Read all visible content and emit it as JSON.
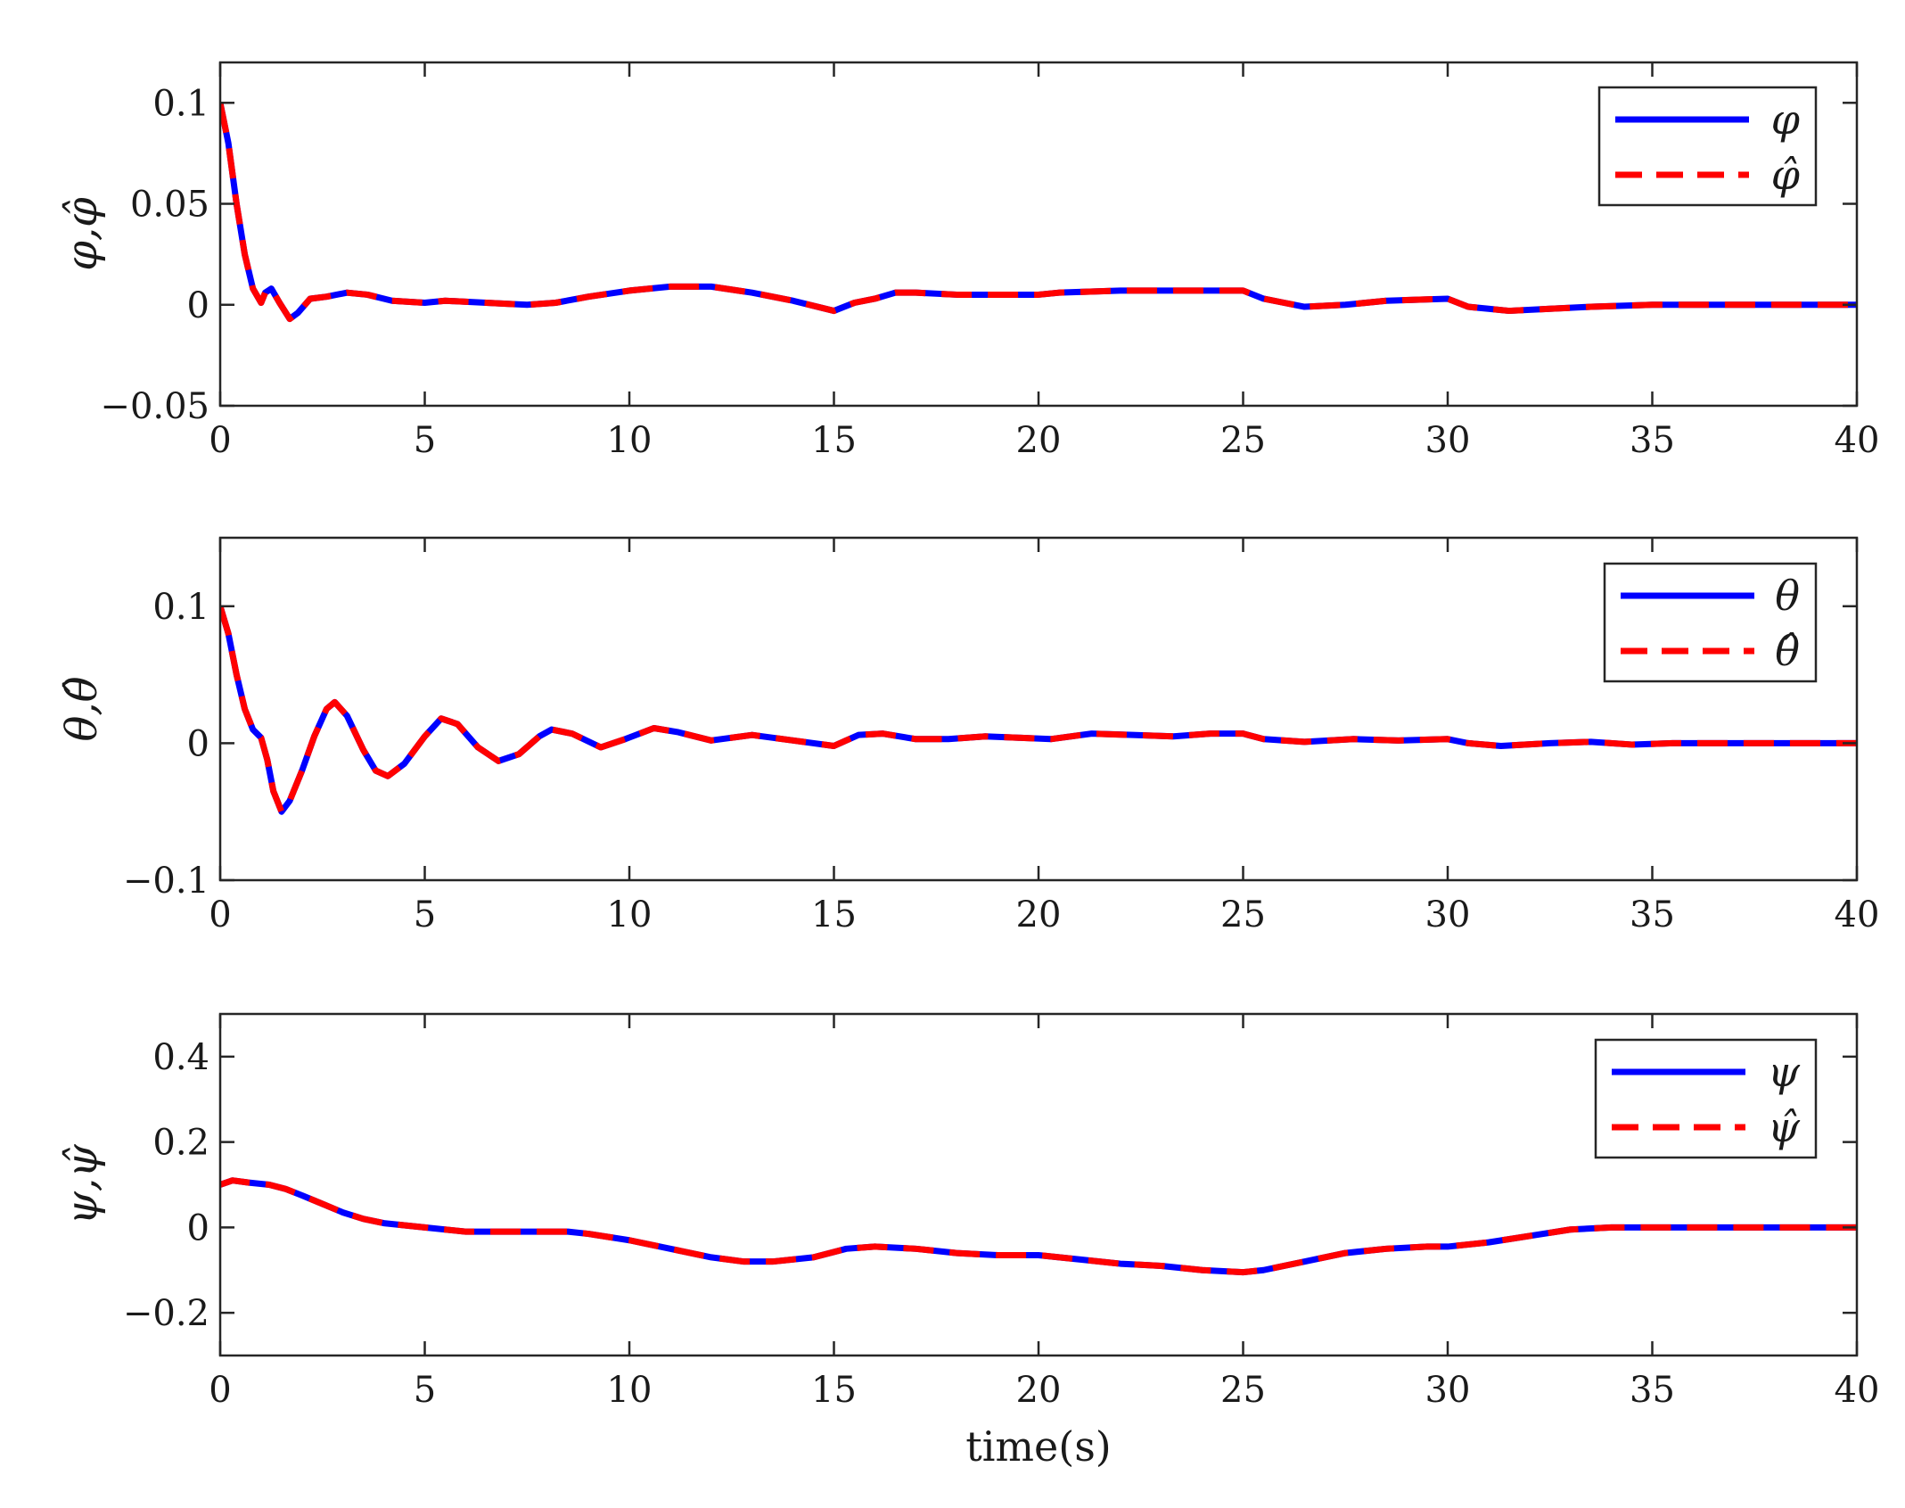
{
  "chart_data": [
    {
      "type": "line",
      "ylabel": "φ,φ̂",
      "xlim": [
        0,
        40
      ],
      "ylim": [
        -0.05,
        0.12
      ],
      "xticks": [
        "0",
        "5",
        "10",
        "15",
        "20",
        "25",
        "30",
        "35",
        "40"
      ],
      "yticks": [
        {
          "value": -0.05,
          "label": "−0.05"
        },
        {
          "value": 0,
          "label": "0"
        },
        {
          "value": 0.05,
          "label": "0.05"
        },
        {
          "value": 0.1,
          "label": "0.1"
        }
      ],
      "legend_position": "top-right",
      "grid": false,
      "series": [
        {
          "name": "φ",
          "color": "#0000ff",
          "style": "solid",
          "x": [
            0,
            0.2,
            0.4,
            0.6,
            0.8,
            1.0,
            1.1,
            1.25,
            1.45,
            1.7,
            1.9,
            2.2,
            2.6,
            3.1,
            3.6,
            4.2,
            5.0,
            5.5,
            6.5,
            7.5,
            8.2,
            9.0,
            10.0,
            11.0,
            12.0,
            13.0,
            14.0,
            15.0,
            15.5,
            16.0,
            16.5,
            17.0,
            18.0,
            19.0,
            20.0,
            20.5,
            22.0,
            23.0,
            25.0,
            25.5,
            26.0,
            26.5,
            27.5,
            28.5,
            30.0,
            30.5,
            31.0,
            31.5,
            32.5,
            33.5,
            35.0,
            40.0
          ],
          "y": [
            0.1,
            0.08,
            0.05,
            0.025,
            0.008,
            0.001,
            0.006,
            0.008,
            0.001,
            -0.007,
            -0.004,
            0.003,
            0.004,
            0.006,
            0.005,
            0.002,
            0.001,
            0.002,
            0.001,
            0,
            0.001,
            0.004,
            0.007,
            0.009,
            0.009,
            0.006,
            0.002,
            -0.003,
            0.001,
            0.003,
            0.006,
            0.006,
            0.005,
            0.005,
            0.005,
            0.006,
            0.007,
            0.007,
            0.007,
            0.003,
            0.001,
            -0.001,
            0,
            0.002,
            0.003,
            -0.001,
            -0.002,
            -0.003,
            -0.002,
            -0.001,
            0,
            0
          ]
        },
        {
          "name": "φ̂",
          "color": "#ff0000",
          "style": "dashed",
          "x": [
            0,
            0.2,
            0.4,
            0.6,
            0.8,
            1.0,
            1.1,
            1.25,
            1.45,
            1.7,
            1.9,
            2.2,
            2.6,
            3.1,
            3.6,
            4.2,
            5.0,
            5.5,
            6.5,
            7.5,
            8.2,
            9.0,
            10.0,
            11.0,
            12.0,
            13.0,
            14.0,
            15.0,
            15.5,
            16.0,
            16.5,
            17.0,
            18.0,
            19.0,
            20.0,
            20.5,
            22.0,
            23.0,
            25.0,
            25.5,
            26.0,
            26.5,
            27.5,
            28.5,
            30.0,
            30.5,
            31.0,
            31.5,
            32.5,
            33.5,
            35.0,
            40.0
          ],
          "y": [
            0.1,
            0.08,
            0.05,
            0.025,
            0.008,
            0.001,
            0.006,
            0.008,
            0.001,
            -0.007,
            -0.004,
            0.003,
            0.004,
            0.006,
            0.005,
            0.002,
            0.001,
            0.002,
            0.001,
            0,
            0.001,
            0.004,
            0.007,
            0.009,
            0.009,
            0.006,
            0.002,
            -0.003,
            0.001,
            0.003,
            0.006,
            0.006,
            0.005,
            0.005,
            0.005,
            0.006,
            0.007,
            0.007,
            0.007,
            0.003,
            0.001,
            -0.001,
            0,
            0.002,
            0.003,
            -0.001,
            -0.002,
            -0.003,
            -0.002,
            -0.001,
            0,
            0
          ]
        }
      ]
    },
    {
      "type": "line",
      "ylabel": "θ,θ̂",
      "xlim": [
        0,
        40
      ],
      "ylim": [
        -0.1,
        0.15
      ],
      "xticks": [
        "0",
        "5",
        "10",
        "15",
        "20",
        "25",
        "30",
        "35",
        "40"
      ],
      "yticks": [
        {
          "value": -0.1,
          "label": "−0.1"
        },
        {
          "value": 0,
          "label": "0"
        },
        {
          "value": 0.1,
          "label": "0.1"
        }
      ],
      "legend_position": "top-right",
      "grid": false,
      "series": [
        {
          "name": "θ",
          "color": "#0000ff",
          "style": "solid",
          "x": [
            0,
            0.2,
            0.4,
            0.6,
            0.8,
            1.0,
            1.15,
            1.3,
            1.5,
            1.7,
            2.0,
            2.3,
            2.6,
            2.8,
            3.1,
            3.5,
            3.8,
            4.1,
            4.5,
            5.0,
            5.4,
            5.8,
            6.3,
            6.8,
            7.3,
            7.8,
            8.1,
            8.6,
            9.3,
            9.9,
            10.6,
            11.2,
            12.0,
            13.0,
            14.0,
            15.0,
            15.6,
            16.2,
            17.0,
            17.8,
            18.7,
            19.5,
            20.3,
            21.3,
            22.3,
            23.3,
            24.2,
            25.0,
            25.5,
            26.5,
            27.7,
            28.8,
            30.0,
            30.5,
            31.3,
            32.5,
            33.5,
            34.5,
            35.5,
            37.0,
            40.0
          ],
          "y": [
            0.1,
            0.08,
            0.05,
            0.025,
            0.01,
            0.004,
            -0.012,
            -0.035,
            -0.05,
            -0.042,
            -0.02,
            0.005,
            0.025,
            0.03,
            0.02,
            -0.005,
            -0.02,
            -0.024,
            -0.015,
            0.005,
            0.018,
            0.014,
            -0.003,
            -0.013,
            -0.008,
            0.005,
            0.01,
            0.007,
            -0.003,
            0.003,
            0.011,
            0.008,
            0.002,
            0.006,
            0.002,
            -0.002,
            0.006,
            0.007,
            0.003,
            0.003,
            0.005,
            0.004,
            0.003,
            0.007,
            0.006,
            0.005,
            0.007,
            0.007,
            0.003,
            0.001,
            0.003,
            0.002,
            0.003,
            0,
            -0.002,
            0,
            0.001,
            -0.001,
            0,
            0,
            0
          ]
        },
        {
          "name": "θ̂",
          "color": "#ff0000",
          "style": "dashed",
          "x": [
            0,
            0.2,
            0.4,
            0.6,
            0.8,
            1.0,
            1.15,
            1.3,
            1.5,
            1.7,
            2.0,
            2.3,
            2.6,
            2.8,
            3.1,
            3.5,
            3.8,
            4.1,
            4.5,
            5.0,
            5.4,
            5.8,
            6.3,
            6.8,
            7.3,
            7.8,
            8.1,
            8.6,
            9.3,
            9.9,
            10.6,
            11.2,
            12.0,
            13.0,
            14.0,
            15.0,
            15.6,
            16.2,
            17.0,
            17.8,
            18.7,
            19.5,
            20.3,
            21.3,
            22.3,
            23.3,
            24.2,
            25.0,
            25.5,
            26.5,
            27.7,
            28.8,
            30.0,
            30.5,
            31.3,
            32.5,
            33.5,
            34.5,
            35.5,
            37.0,
            40.0
          ],
          "y": [
            0.1,
            0.08,
            0.05,
            0.025,
            0.01,
            0.004,
            -0.012,
            -0.035,
            -0.05,
            -0.042,
            -0.02,
            0.005,
            0.025,
            0.03,
            0.02,
            -0.005,
            -0.02,
            -0.024,
            -0.015,
            0.005,
            0.018,
            0.014,
            -0.003,
            -0.013,
            -0.008,
            0.005,
            0.01,
            0.007,
            -0.003,
            0.003,
            0.011,
            0.008,
            0.002,
            0.006,
            0.002,
            -0.002,
            0.006,
            0.007,
            0.003,
            0.003,
            0.005,
            0.004,
            0.003,
            0.007,
            0.006,
            0.005,
            0.007,
            0.007,
            0.003,
            0.001,
            0.003,
            0.002,
            0.003,
            0,
            -0.002,
            0,
            0.001,
            -0.001,
            0,
            0,
            0
          ]
        }
      ]
    },
    {
      "type": "line",
      "ylabel": "ψ,ψ̂",
      "xlabel": "time(s)",
      "xlim": [
        0,
        40
      ],
      "ylim": [
        -0.3,
        0.5
      ],
      "xticks": [
        "0",
        "5",
        "10",
        "15",
        "20",
        "25",
        "30",
        "35",
        "40"
      ],
      "yticks": [
        {
          "value": -0.2,
          "label": "−0.2"
        },
        {
          "value": 0,
          "label": "0"
        },
        {
          "value": 0.2,
          "label": "0.2"
        },
        {
          "value": 0.4,
          "label": "0.4"
        }
      ],
      "legend_position": "top-right",
      "grid": false,
      "series": [
        {
          "name": "ψ",
          "color": "#0000ff",
          "style": "solid",
          "x": [
            0,
            0.3,
            0.7,
            1.2,
            1.6,
            2.0,
            2.5,
            3.0,
            3.5,
            4.0,
            4.5,
            5.0,
            6.0,
            7.0,
            8.0,
            8.5,
            9.0,
            10.0,
            11.0,
            12.0,
            12.8,
            13.5,
            14.5,
            15.3,
            16.0,
            17.0,
            18.0,
            19.0,
            20.0,
            21.0,
            22.0,
            23.0,
            24.0,
            25.0,
            25.5,
            26.5,
            27.5,
            28.5,
            29.5,
            30.0,
            31.0,
            32.0,
            33.0,
            34.0,
            35.0,
            37.0,
            40.0
          ],
          "y": [
            0.1,
            0.11,
            0.105,
            0.1,
            0.09,
            0.075,
            0.055,
            0.035,
            0.02,
            0.01,
            0.005,
            0,
            -0.01,
            -0.01,
            -0.01,
            -0.01,
            -0.015,
            -0.03,
            -0.05,
            -0.07,
            -0.08,
            -0.08,
            -0.07,
            -0.05,
            -0.045,
            -0.05,
            -0.06,
            -0.065,
            -0.065,
            -0.075,
            -0.085,
            -0.09,
            -0.1,
            -0.105,
            -0.1,
            -0.08,
            -0.06,
            -0.05,
            -0.045,
            -0.045,
            -0.035,
            -0.02,
            -0.005,
            0,
            0,
            0,
            0
          ]
        },
        {
          "name": "ψ̂",
          "color": "#ff0000",
          "style": "dashed",
          "x": [
            0,
            0.3,
            0.7,
            1.2,
            1.6,
            2.0,
            2.5,
            3.0,
            3.5,
            4.0,
            4.5,
            5.0,
            6.0,
            7.0,
            8.0,
            8.5,
            9.0,
            10.0,
            11.0,
            12.0,
            12.8,
            13.5,
            14.5,
            15.3,
            16.0,
            17.0,
            18.0,
            19.0,
            20.0,
            21.0,
            22.0,
            23.0,
            24.0,
            25.0,
            25.5,
            26.5,
            27.5,
            28.5,
            29.5,
            30.0,
            31.0,
            32.0,
            33.0,
            34.0,
            35.0,
            37.0,
            40.0
          ],
          "y": [
            0.1,
            0.11,
            0.105,
            0.1,
            0.09,
            0.075,
            0.055,
            0.035,
            0.02,
            0.01,
            0.005,
            0,
            -0.01,
            -0.01,
            -0.01,
            -0.01,
            -0.015,
            -0.03,
            -0.05,
            -0.07,
            -0.08,
            -0.08,
            -0.07,
            -0.05,
            -0.045,
            -0.05,
            -0.06,
            -0.065,
            -0.065,
            -0.075,
            -0.085,
            -0.09,
            -0.1,
            -0.105,
            -0.1,
            -0.08,
            -0.06,
            -0.05,
            -0.045,
            -0.045,
            -0.035,
            -0.02,
            -0.005,
            0,
            0,
            0,
            0
          ]
        }
      ]
    }
  ]
}
